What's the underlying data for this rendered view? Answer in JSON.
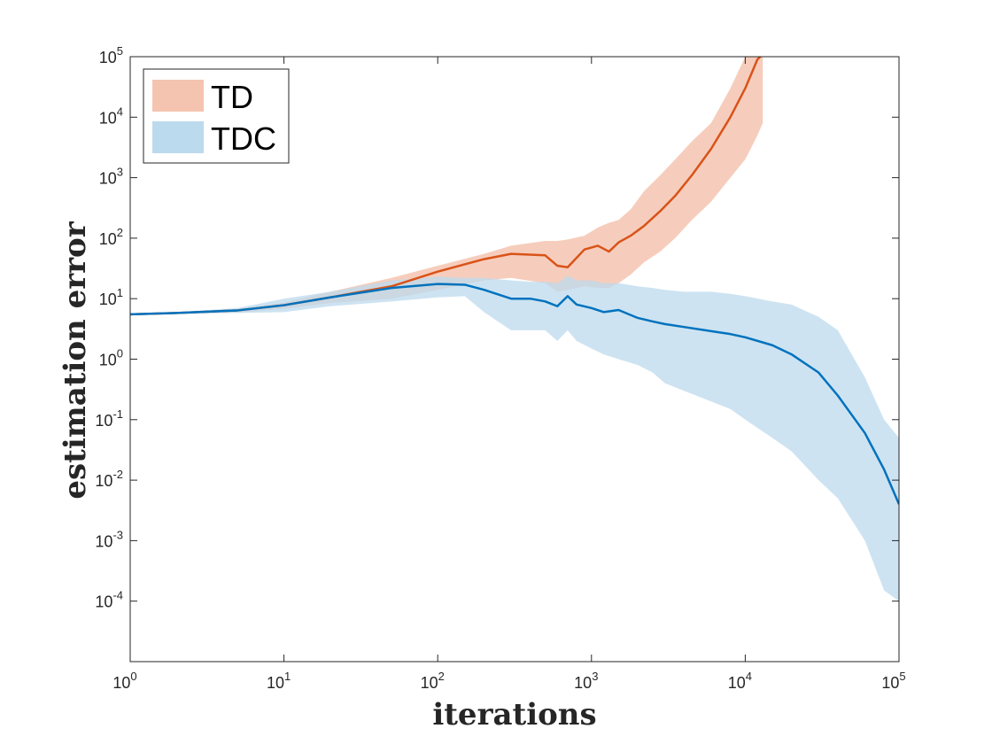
{
  "chart_data": {
    "type": "line",
    "xlabel": "iterations",
    "ylabel": "estimation error",
    "x_scale": "log",
    "y_scale": "log",
    "xlim": [
      1,
      100000
    ],
    "ylim": [
      1e-05,
      100000
    ],
    "x_ticks": [
      {
        "value": 1,
        "base": "10",
        "exp": "0"
      },
      {
        "value": 10,
        "base": "10",
        "exp": "1"
      },
      {
        "value": 100,
        "base": "10",
        "exp": "2"
      },
      {
        "value": 1000,
        "base": "10",
        "exp": "3"
      },
      {
        "value": 10000,
        "base": "10",
        "exp": "4"
      },
      {
        "value": 100000,
        "base": "10",
        "exp": "5"
      }
    ],
    "y_ticks": [
      {
        "value": 0.0001,
        "base": "10",
        "exp": "-4"
      },
      {
        "value": 0.001,
        "base": "10",
        "exp": "-3"
      },
      {
        "value": 0.01,
        "base": "10",
        "exp": "-2"
      },
      {
        "value": 0.1,
        "base": "10",
        "exp": "-1"
      },
      {
        "value": 1,
        "base": "10",
        "exp": "0"
      },
      {
        "value": 10,
        "base": "10",
        "exp": "1"
      },
      {
        "value": 100,
        "base": "10",
        "exp": "2"
      },
      {
        "value": 1000,
        "base": "10",
        "exp": "3"
      },
      {
        "value": 10000,
        "base": "10",
        "exp": "4"
      },
      {
        "value": 100000,
        "base": "10",
        "exp": "5"
      }
    ],
    "legend": {
      "position": "top-left",
      "entries": [
        "TD",
        "TDC"
      ]
    },
    "series": [
      {
        "name": "TD",
        "line_color": "#d95319",
        "band_color": "#f4c4b0",
        "x": [
          1,
          2,
          5,
          10,
          20,
          50,
          100,
          200,
          300,
          500,
          600,
          700,
          900,
          1100,
          1300,
          1500,
          1800,
          2200,
          2800,
          3500,
          4500,
          6000,
          8000,
          10000,
          12000,
          13000
        ],
        "mean": [
          5.5,
          5.8,
          6.4,
          7.8,
          10.5,
          16,
          28,
          45,
          55,
          52,
          35,
          33,
          65,
          75,
          60,
          85,
          110,
          160,
          280,
          500,
          1100,
          3000,
          10000,
          30000,
          90000,
          110000
        ],
        "upper": [
          5.6,
          6.0,
          6.8,
          8.6,
          13,
          22,
          35,
          55,
          75,
          90,
          90,
          95,
          110,
          150,
          180,
          200,
          300,
          600,
          1100,
          2000,
          4000,
          8000,
          30000,
          100000,
          200000,
          300000
        ],
        "lower": [
          5.4,
          5.6,
          5.9,
          6.8,
          8.5,
          10,
          14,
          20,
          22,
          18,
          13,
          14,
          16,
          15,
          15,
          18,
          25,
          40,
          60,
          100,
          200,
          400,
          1000,
          2000,
          5000,
          8000
        ]
      },
      {
        "name": "TDC",
        "line_color": "#0072bd",
        "band_color": "#bcdaee",
        "x": [
          1,
          2,
          5,
          10,
          20,
          50,
          100,
          150,
          200,
          300,
          400,
          500,
          600,
          700,
          800,
          1000,
          1200,
          1500,
          2000,
          2500,
          3000,
          4000,
          6000,
          8000,
          10000,
          15000,
          20000,
          30000,
          40000,
          60000,
          80000,
          100000
        ],
        "mean": [
          5.5,
          5.8,
          6.4,
          7.8,
          10.5,
          15,
          17.5,
          17,
          14,
          10,
          10,
          9,
          7.5,
          11,
          8,
          7,
          6,
          6.5,
          4.8,
          4.2,
          3.8,
          3.4,
          2.9,
          2.6,
          2.3,
          1.7,
          1.2,
          0.6,
          0.25,
          0.06,
          0.015,
          0.004
        ],
        "upper": [
          5.6,
          6.0,
          7.0,
          10,
          13,
          20,
          23,
          22,
          22,
          20,
          19,
          19,
          18,
          24,
          20,
          20,
          18,
          18,
          16,
          15,
          14,
          13,
          13,
          12,
          11,
          9,
          8,
          5,
          3,
          0.5,
          0.1,
          0.05
        ],
        "lower": [
          5.4,
          5.6,
          5.8,
          6.0,
          7.5,
          9,
          10.5,
          11,
          6,
          3,
          3,
          3,
          2,
          3,
          2,
          1.5,
          1.2,
          1.0,
          0.8,
          0.6,
          0.4,
          0.3,
          0.2,
          0.15,
          0.1,
          0.05,
          0.03,
          0.01,
          0.005,
          0.001,
          0.00015,
          0.0001
        ]
      }
    ]
  }
}
